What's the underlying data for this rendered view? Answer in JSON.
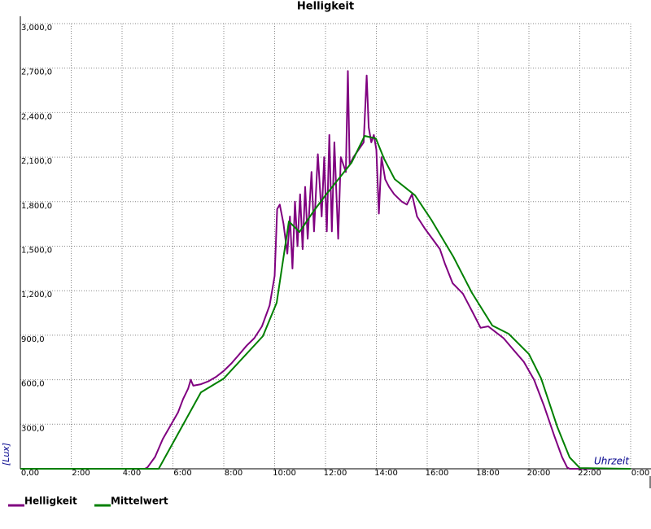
{
  "chart_data": {
    "type": "line",
    "title": "Helligkeit",
    "y_label": "[Lux]",
    "x_label": "Uhrzeit",
    "xlim": [
      0,
      24
    ],
    "ylim": [
      0,
      3000
    ],
    "grid": true,
    "legend": "bottom-left",
    "xticks": [
      {
        "value": 0,
        "label": "0,00"
      },
      {
        "value": 2,
        "label": "2:00"
      },
      {
        "value": 4,
        "label": "4:00"
      },
      {
        "value": 6,
        "label": "6:00"
      },
      {
        "value": 8,
        "label": "8:00"
      },
      {
        "value": 10,
        "label": "10:00"
      },
      {
        "value": 12,
        "label": "12:00"
      },
      {
        "value": 14,
        "label": "14:00"
      },
      {
        "value": 16,
        "label": "16:00"
      },
      {
        "value": 18,
        "label": "18:00"
      },
      {
        "value": 20,
        "label": "20:00"
      },
      {
        "value": 22,
        "label": "22:00"
      },
      {
        "value": 24,
        "label": "0:00"
      }
    ],
    "yticks": [
      {
        "value": 300,
        "label": "300,0"
      },
      {
        "value": 600,
        "label": "600,0"
      },
      {
        "value": 900,
        "label": "900,0"
      },
      {
        "value": 1200,
        "label": "1,200,0"
      },
      {
        "value": 1500,
        "label": "1,500,0"
      },
      {
        "value": 1800,
        "label": "1,800,0"
      },
      {
        "value": 2100,
        "label": "2,100,0"
      },
      {
        "value": 2400,
        "label": "2,400,0"
      },
      {
        "value": 2700,
        "label": "2,700,0"
      },
      {
        "value": 3000,
        "label": "3,000,0"
      }
    ],
    "series": [
      {
        "name": "Helligkeit",
        "color": "#800080",
        "x": [
          0,
          4.9,
          5.0,
          5.3,
          5.6,
          5.9,
          6.2,
          6.4,
          6.6,
          6.7,
          6.8,
          7.1,
          7.4,
          7.7,
          8.0,
          8.3,
          8.6,
          8.9,
          9.2,
          9.5,
          9.8,
          10.0,
          10.1,
          10.2,
          10.35,
          10.5,
          10.6,
          10.7,
          10.8,
          10.9,
          11.0,
          11.1,
          11.2,
          11.3,
          11.45,
          11.55,
          11.7,
          11.85,
          11.95,
          12.05,
          12.15,
          12.25,
          12.35,
          12.5,
          12.6,
          12.8,
          12.88,
          12.95,
          13.1,
          13.3,
          13.5,
          13.62,
          13.7,
          13.8,
          13.9,
          14.0,
          14.1,
          14.2,
          14.35,
          14.5,
          14.7,
          15.0,
          15.2,
          15.4,
          15.6,
          15.9,
          16.2,
          16.5,
          16.7,
          17.0,
          17.4,
          17.8,
          18.1,
          18.4,
          18.7,
          19.0,
          19.4,
          19.8,
          20.2,
          20.6,
          21.0,
          21.3,
          21.5,
          21.6,
          24
        ],
        "values": [
          0,
          0,
          10,
          80,
          200,
          290,
          380,
          470,
          540,
          600,
          560,
          570,
          590,
          620,
          660,
          710,
          770,
          830,
          880,
          960,
          1100,
          1300,
          1750,
          1780,
          1650,
          1450,
          1700,
          1350,
          1800,
          1500,
          1850,
          1480,
          1900,
          1550,
          2000,
          1600,
          2120,
          1700,
          2100,
          1600,
          2250,
          1600,
          2200,
          1550,
          2100,
          2000,
          2680,
          2050,
          2100,
          2150,
          2200,
          2650,
          2300,
          2200,
          2250,
          2150,
          1720,
          2100,
          1950,
          1900,
          1850,
          1800,
          1780,
          1850,
          1700,
          1620,
          1550,
          1480,
          1380,
          1250,
          1180,
          1050,
          950,
          960,
          920,
          880,
          800,
          720,
          600,
          420,
          220,
          80,
          10,
          0,
          0
        ]
      },
      {
        "name": "Mittelwert",
        "color": "#008000",
        "x": [
          0,
          5.44,
          7.1,
          8.0,
          9.54,
          10.08,
          10.56,
          10.98,
          11.52,
          12.0,
          12.64,
          13.02,
          13.54,
          13.98,
          14.3,
          14.72,
          15.52,
          16.16,
          17.02,
          17.76,
          18.56,
          19.2,
          20.0,
          20.48,
          21.12,
          21.6,
          22.0,
          24
        ],
        "values": [
          0,
          0,
          515,
          608,
          894,
          1119,
          1667,
          1596,
          1733,
          1843,
          1980,
          2062,
          2243,
          2226,
          2090,
          1952,
          1843,
          1678,
          1431,
          1185,
          965,
          910,
          773,
          608,
          280,
          77,
          5,
          0
        ]
      }
    ]
  }
}
